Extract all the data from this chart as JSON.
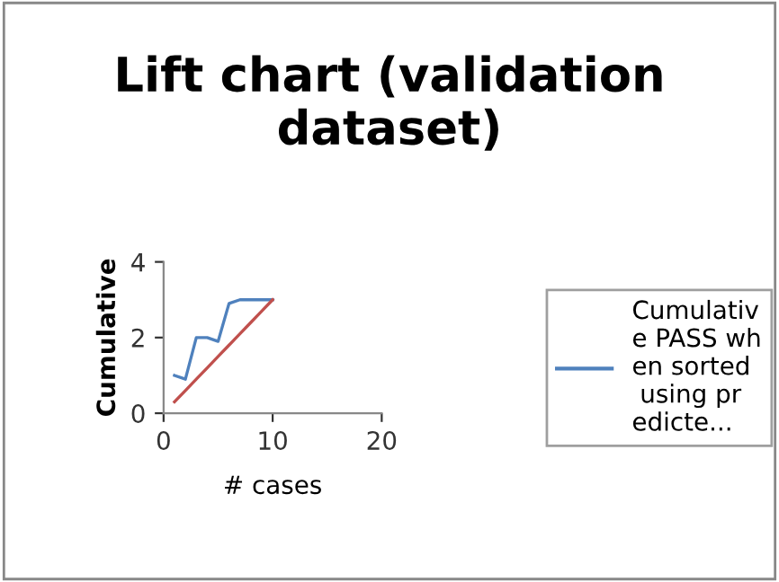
{
  "chart_data": {
    "type": "line",
    "title": "Lift chart (validation dataset)",
    "xlabel": "# cases",
    "ylabel": "Cumulative",
    "x": [
      1,
      2,
      3,
      4,
      5,
      6,
      7,
      8,
      9,
      10
    ],
    "series": [
      {
        "name": "Cumulative PASS when sorted using predicte...",
        "color": "#4f81bd",
        "values": [
          1.0,
          0.9,
          2.0,
          2.0,
          1.9,
          2.9,
          3.0,
          3.0,
          3.0,
          3.0
        ]
      },
      {
        "color": "#c0504d",
        "values": [
          0.3,
          0.6,
          0.9,
          1.2,
          1.5,
          1.8,
          2.1,
          2.4,
          2.7,
          3.0
        ]
      }
    ],
    "xlim": [
      0,
      20
    ],
    "xticks": [
      0,
      10,
      20
    ],
    "ylim": [
      0,
      4
    ],
    "yticks": [
      0,
      2,
      4
    ],
    "grid": false,
    "legend": "right"
  }
}
